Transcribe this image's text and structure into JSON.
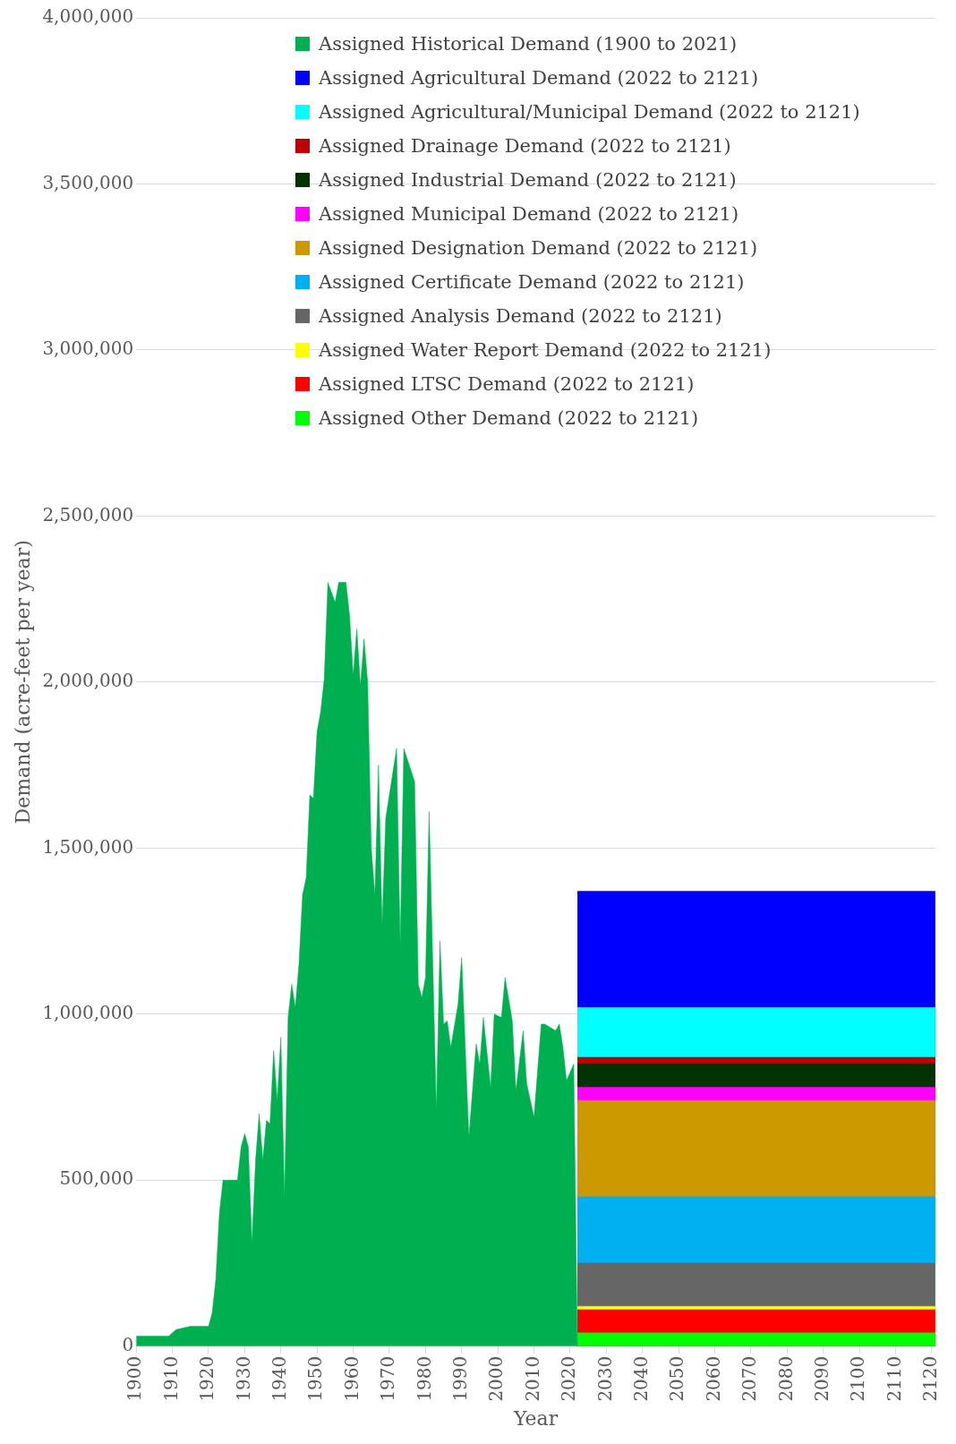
{
  "chart_data": {
    "type": "area",
    "xlabel": "Year",
    "ylabel": "Demand (acre-feet per year)",
    "xlim": [
      1900,
      2121
    ],
    "xticks": [
      1900,
      1910,
      1920,
      1930,
      1940,
      1950,
      1960,
      1970,
      1980,
      1990,
      2000,
      2010,
      2020,
      2030,
      2040,
      2050,
      2060,
      2070,
      2080,
      2090,
      2100,
      2110,
      2120
    ],
    "ylim": [
      0,
      4000000
    ],
    "yticks": [
      {
        "value": 0,
        "label": "0"
      },
      {
        "value": 500000,
        "label": "500,000"
      },
      {
        "value": 1000000,
        "label": "1,000,000"
      },
      {
        "value": 1500000,
        "label": "1,500,000"
      },
      {
        "value": 2000000,
        "label": "2,000,000"
      },
      {
        "value": 2500000,
        "label": "2,500,000"
      },
      {
        "value": 3000000,
        "label": "3,000,000"
      },
      {
        "value": 3500000,
        "label": "3,500,000"
      },
      {
        "value": 4000000,
        "label": "4,000,000"
      }
    ],
    "grid": "y",
    "legend": "top",
    "stacked": true,
    "x": [
      1900,
      1909,
      1910,
      1911,
      1915,
      1920,
      1921,
      1922,
      1923,
      1924,
      1928,
      1929,
      1930,
      1931,
      1932,
      1933,
      1934,
      1935,
      1936,
      1937,
      1938,
      1939,
      1940,
      1941,
      1942,
      1943,
      1944,
      1945,
      1946,
      1947,
      1948,
      1949,
      1950,
      1951,
      1952,
      1953,
      1955,
      1956,
      1958,
      1959,
      1960,
      1961,
      1962,
      1963,
      1964,
      1965,
      1966,
      1967,
      1968,
      1969,
      1972,
      1973,
      1974,
      1977,
      1978,
      1979,
      1980,
      1981,
      1983,
      1984,
      1985,
      1986,
      1987,
      1989,
      1990,
      1992,
      1994,
      1995,
      1996,
      1998,
      1999,
      2001,
      2002,
      2004,
      2005,
      2007,
      2008,
      2010,
      2012,
      2013,
      2016,
      2017,
      2018,
      2019,
      2021,
      2022,
      2121
    ],
    "series": [
      {
        "name": "Assigned Historical Demand (1900 to 2021)",
        "color": "#00b050",
        "values": [
          30000,
          30000,
          40000,
          50000,
          60000,
          60000,
          100000,
          200000,
          400000,
          500000,
          500000,
          600000,
          640000,
          600000,
          310000,
          560000,
          700000,
          560000,
          680000,
          670000,
          890000,
          740000,
          930000,
          450000,
          990000,
          1090000,
          1020000,
          1150000,
          1360000,
          1410000,
          1660000,
          1650000,
          1850000,
          1910000,
          2010000,
          2300000,
          2240000,
          2300000,
          2300000,
          2200000,
          2020000,
          2160000,
          1990000,
          2130000,
          2000000,
          1500000,
          1360000,
          1750000,
          1270000,
          1590000,
          1800000,
          1210000,
          1800000,
          1700000,
          1090000,
          1050000,
          1110000,
          1610000,
          710000,
          1220000,
          970000,
          980000,
          900000,
          1030000,
          1170000,
          630000,
          910000,
          850000,
          990000,
          780000,
          1000000,
          990000,
          1110000,
          980000,
          770000,
          950000,
          790000,
          690000,
          970000,
          970000,
          950000,
          970000,
          900000,
          800000,
          850000,
          0,
          null
        ]
      },
      {
        "name": "Assigned Other Demand (2022 to 2121)",
        "color": "#00ff00",
        "values": [
          null,
          null,
          null,
          null,
          null,
          null,
          null,
          null,
          null,
          null,
          null,
          null,
          null,
          null,
          null,
          null,
          null,
          null,
          null,
          null,
          null,
          null,
          null,
          null,
          null,
          null,
          null,
          null,
          null,
          null,
          null,
          null,
          null,
          null,
          null,
          null,
          null,
          null,
          null,
          null,
          null,
          null,
          null,
          null,
          null,
          null,
          null,
          null,
          null,
          null,
          null,
          null,
          null,
          null,
          null,
          null,
          null,
          null,
          null,
          null,
          null,
          null,
          null,
          null,
          null,
          null,
          null,
          null,
          null,
          null,
          null,
          null,
          null,
          null,
          null,
          null,
          null,
          null,
          null,
          null,
          null,
          null,
          null,
          null,
          null,
          40000,
          40000
        ]
      },
      {
        "name": "Assigned LTSC Demand (2022 to 2121)",
        "color": "#ff0000",
        "values": [
          null,
          null,
          null,
          null,
          null,
          null,
          null,
          null,
          null,
          null,
          null,
          null,
          null,
          null,
          null,
          null,
          null,
          null,
          null,
          null,
          null,
          null,
          null,
          null,
          null,
          null,
          null,
          null,
          null,
          null,
          null,
          null,
          null,
          null,
          null,
          null,
          null,
          null,
          null,
          null,
          null,
          null,
          null,
          null,
          null,
          null,
          null,
          null,
          null,
          null,
          null,
          null,
          null,
          null,
          null,
          null,
          null,
          null,
          null,
          null,
          null,
          null,
          null,
          null,
          null,
          null,
          null,
          null,
          null,
          null,
          null,
          null,
          null,
          null,
          null,
          null,
          null,
          null,
          null,
          null,
          null,
          null,
          null,
          null,
          null,
          70000,
          70000
        ]
      },
      {
        "name": "Assigned Water Report Demand (2022 to 2121)",
        "color": "#ffff00",
        "values": [
          null,
          null,
          null,
          null,
          null,
          null,
          null,
          null,
          null,
          null,
          null,
          null,
          null,
          null,
          null,
          null,
          null,
          null,
          null,
          null,
          null,
          null,
          null,
          null,
          null,
          null,
          null,
          null,
          null,
          null,
          null,
          null,
          null,
          null,
          null,
          null,
          null,
          null,
          null,
          null,
          null,
          null,
          null,
          null,
          null,
          null,
          null,
          null,
          null,
          null,
          null,
          null,
          null,
          null,
          null,
          null,
          null,
          null,
          null,
          null,
          null,
          null,
          null,
          null,
          null,
          null,
          null,
          null,
          null,
          null,
          null,
          null,
          null,
          null,
          null,
          null,
          null,
          null,
          null,
          null,
          null,
          null,
          null,
          null,
          null,
          10000,
          10000
        ]
      },
      {
        "name": "Assigned Analysis Demand (2022 to 2121)",
        "color": "#666666",
        "values": [
          null,
          null,
          null,
          null,
          null,
          null,
          null,
          null,
          null,
          null,
          null,
          null,
          null,
          null,
          null,
          null,
          null,
          null,
          null,
          null,
          null,
          null,
          null,
          null,
          null,
          null,
          null,
          null,
          null,
          null,
          null,
          null,
          null,
          null,
          null,
          null,
          null,
          null,
          null,
          null,
          null,
          null,
          null,
          null,
          null,
          null,
          null,
          null,
          null,
          null,
          null,
          null,
          null,
          null,
          null,
          null,
          null,
          null,
          null,
          null,
          null,
          null,
          null,
          null,
          null,
          null,
          null,
          null,
          null,
          null,
          null,
          null,
          null,
          null,
          null,
          null,
          null,
          null,
          null,
          null,
          null,
          null,
          null,
          null,
          null,
          130000,
          130000
        ]
      },
      {
        "name": "Assigned Certificate Demand (2022 to 2121)",
        "color": "#00b0f0",
        "values": [
          null,
          null,
          null,
          null,
          null,
          null,
          null,
          null,
          null,
          null,
          null,
          null,
          null,
          null,
          null,
          null,
          null,
          null,
          null,
          null,
          null,
          null,
          null,
          null,
          null,
          null,
          null,
          null,
          null,
          null,
          null,
          null,
          null,
          null,
          null,
          null,
          null,
          null,
          null,
          null,
          null,
          null,
          null,
          null,
          null,
          null,
          null,
          null,
          null,
          null,
          null,
          null,
          null,
          null,
          null,
          null,
          null,
          null,
          null,
          null,
          null,
          null,
          null,
          null,
          null,
          null,
          null,
          null,
          null,
          null,
          null,
          null,
          null,
          null,
          null,
          null,
          null,
          null,
          null,
          null,
          null,
          null,
          null,
          null,
          null,
          200000,
          200000
        ]
      },
      {
        "name": "Assigned Designation Demand (2022 to 2121)",
        "color": "#cc9900",
        "values": [
          null,
          null,
          null,
          null,
          null,
          null,
          null,
          null,
          null,
          null,
          null,
          null,
          null,
          null,
          null,
          null,
          null,
          null,
          null,
          null,
          null,
          null,
          null,
          null,
          null,
          null,
          null,
          null,
          null,
          null,
          null,
          null,
          null,
          null,
          null,
          null,
          null,
          null,
          null,
          null,
          null,
          null,
          null,
          null,
          null,
          null,
          null,
          null,
          null,
          null,
          null,
          null,
          null,
          null,
          null,
          null,
          null,
          null,
          null,
          null,
          null,
          null,
          null,
          null,
          null,
          null,
          null,
          null,
          null,
          null,
          null,
          null,
          null,
          null,
          null,
          null,
          null,
          null,
          null,
          null,
          null,
          null,
          null,
          null,
          null,
          290000,
          290000
        ]
      },
      {
        "name": "Assigned Municipal Demand (2022 to 2121)",
        "color": "#ff00ff",
        "values": [
          null,
          null,
          null,
          null,
          null,
          null,
          null,
          null,
          null,
          null,
          null,
          null,
          null,
          null,
          null,
          null,
          null,
          null,
          null,
          null,
          null,
          null,
          null,
          null,
          null,
          null,
          null,
          null,
          null,
          null,
          null,
          null,
          null,
          null,
          null,
          null,
          null,
          null,
          null,
          null,
          null,
          null,
          null,
          null,
          null,
          null,
          null,
          null,
          null,
          null,
          null,
          null,
          null,
          null,
          null,
          null,
          null,
          null,
          null,
          null,
          null,
          null,
          null,
          null,
          null,
          null,
          null,
          null,
          null,
          null,
          null,
          null,
          null,
          null,
          null,
          null,
          null,
          null,
          null,
          null,
          null,
          null,
          null,
          null,
          null,
          40000,
          40000
        ]
      },
      {
        "name": "Assigned Industrial Demand (2022 to 2121)",
        "color": "#003300",
        "values": [
          null,
          null,
          null,
          null,
          null,
          null,
          null,
          null,
          null,
          null,
          null,
          null,
          null,
          null,
          null,
          null,
          null,
          null,
          null,
          null,
          null,
          null,
          null,
          null,
          null,
          null,
          null,
          null,
          null,
          null,
          null,
          null,
          null,
          null,
          null,
          null,
          null,
          null,
          null,
          null,
          null,
          null,
          null,
          null,
          null,
          null,
          null,
          null,
          null,
          null,
          null,
          null,
          null,
          null,
          null,
          null,
          null,
          null,
          null,
          null,
          null,
          null,
          null,
          null,
          null,
          null,
          null,
          null,
          null,
          null,
          null,
          null,
          null,
          null,
          null,
          null,
          null,
          null,
          null,
          null,
          null,
          null,
          null,
          null,
          null,
          70000,
          70000
        ]
      },
      {
        "name": "Assigned Drainage Demand (2022 to 2121)",
        "color": "#c00000",
        "values": [
          null,
          null,
          null,
          null,
          null,
          null,
          null,
          null,
          null,
          null,
          null,
          null,
          null,
          null,
          null,
          null,
          null,
          null,
          null,
          null,
          null,
          null,
          null,
          null,
          null,
          null,
          null,
          null,
          null,
          null,
          null,
          null,
          null,
          null,
          null,
          null,
          null,
          null,
          null,
          null,
          null,
          null,
          null,
          null,
          null,
          null,
          null,
          null,
          null,
          null,
          null,
          null,
          null,
          null,
          null,
          null,
          null,
          null,
          null,
          null,
          null,
          null,
          null,
          null,
          null,
          null,
          null,
          null,
          null,
          null,
          null,
          null,
          null,
          null,
          null,
          null,
          null,
          null,
          null,
          null,
          null,
          null,
          null,
          null,
          null,
          20000,
          20000
        ]
      },
      {
        "name": "Assigned Agricultural/Municipal Demand (2022 to 2121)",
        "color": "#00ffff",
        "values": [
          null,
          null,
          null,
          null,
          null,
          null,
          null,
          null,
          null,
          null,
          null,
          null,
          null,
          null,
          null,
          null,
          null,
          null,
          null,
          null,
          null,
          null,
          null,
          null,
          null,
          null,
          null,
          null,
          null,
          null,
          null,
          null,
          null,
          null,
          null,
          null,
          null,
          null,
          null,
          null,
          null,
          null,
          null,
          null,
          null,
          null,
          null,
          null,
          null,
          null,
          null,
          null,
          null,
          null,
          null,
          null,
          null,
          null,
          null,
          null,
          null,
          null,
          null,
          null,
          null,
          null,
          null,
          null,
          null,
          null,
          null,
          null,
          null,
          null,
          null,
          null,
          null,
          null,
          null,
          null,
          null,
          null,
          null,
          null,
          null,
          150000,
          150000
        ]
      },
      {
        "name": "Assigned Agricultural Demand (2022 to 2121)",
        "color": "#0000ff",
        "values": [
          null,
          null,
          null,
          null,
          null,
          null,
          null,
          null,
          null,
          null,
          null,
          null,
          null,
          null,
          null,
          null,
          null,
          null,
          null,
          null,
          null,
          null,
          null,
          null,
          null,
          null,
          null,
          null,
          null,
          null,
          null,
          null,
          null,
          null,
          null,
          null,
          null,
          null,
          null,
          null,
          null,
          null,
          null,
          null,
          null,
          null,
          null,
          null,
          null,
          null,
          null,
          null,
          null,
          null,
          null,
          null,
          null,
          null,
          null,
          null,
          null,
          null,
          null,
          null,
          null,
          null,
          null,
          null,
          null,
          null,
          null,
          null,
          null,
          null,
          null,
          null,
          null,
          null,
          null,
          null,
          null,
          null,
          null,
          null,
          null,
          350000,
          350000
        ]
      }
    ]
  }
}
